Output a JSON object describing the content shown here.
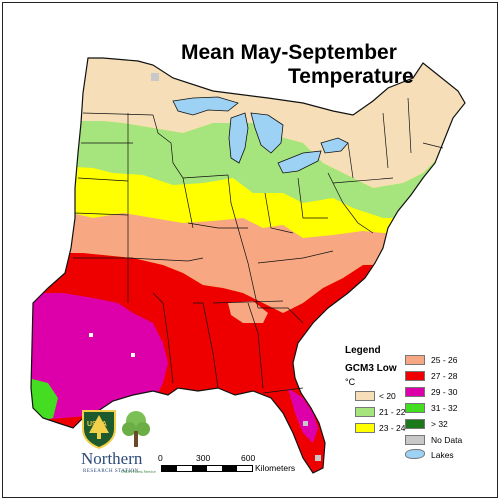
{
  "title": {
    "line1": "Mean May-September",
    "line2": "Temperature"
  },
  "legend": {
    "title": "Legend",
    "model": "GCM3 Low",
    "unit": "°C",
    "items": [
      {
        "label": "< 20",
        "color": "#f6dfb8"
      },
      {
        "label": "21 - 22",
        "color": "#a6e47e"
      },
      {
        "label": "23 - 24",
        "color": "#ffff00"
      },
      {
        "label": "25 - 26",
        "color": "#f7a782"
      },
      {
        "label": "27 - 28",
        "color": "#ee0000"
      },
      {
        "label": "29 - 30",
        "color": "#dd00aa"
      },
      {
        "label": "31 - 32",
        "color": "#44dd22"
      },
      {
        "label": "> 32",
        "color": "#1a7a1a"
      },
      {
        "label": "No Data",
        "color": "#c8c8c8"
      },
      {
        "label": "Lakes",
        "color": "#9ed2f5"
      }
    ]
  },
  "scale_bar": {
    "ticks": [
      "0",
      "300",
      "600"
    ],
    "unit": "Kilometers"
  },
  "logo": {
    "agency_abbrev": "USDA",
    "name": "Northern",
    "subtitle": "RESEARCH STATION",
    "tagline": "USDA Forest Service"
  },
  "colors": {
    "outline": "#111111",
    "background": "#ffffff"
  }
}
